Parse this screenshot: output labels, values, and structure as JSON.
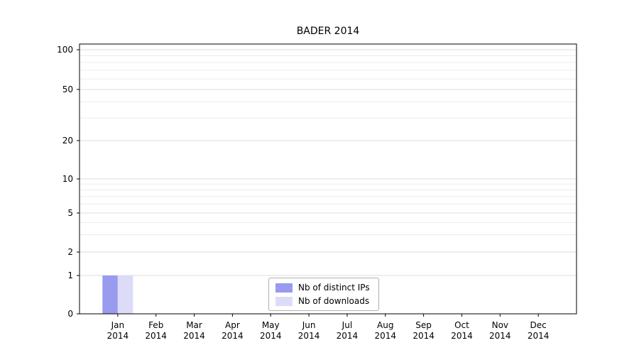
{
  "chart_data": {
    "type": "bar",
    "title": "BADER 2014",
    "categories": [
      {
        "month": "Jan",
        "year": "2014"
      },
      {
        "month": "Feb",
        "year": "2014"
      },
      {
        "month": "Mar",
        "year": "2014"
      },
      {
        "month": "Apr",
        "year": "2014"
      },
      {
        "month": "May",
        "year": "2014"
      },
      {
        "month": "Jun",
        "year": "2014"
      },
      {
        "month": "Jul",
        "year": "2014"
      },
      {
        "month": "Aug",
        "year": "2014"
      },
      {
        "month": "Sep",
        "year": "2014"
      },
      {
        "month": "Oct",
        "year": "2014"
      },
      {
        "month": "Nov",
        "year": "2014"
      },
      {
        "month": "Dec",
        "year": "2014"
      }
    ],
    "series": [
      {
        "name": "Nb of distinct IPs",
        "color": "#999bef",
        "values": [
          1,
          0,
          0,
          0,
          0,
          0,
          0,
          0,
          0,
          0,
          0,
          0
        ]
      },
      {
        "name": "Nb of downloads",
        "color": "#dcdcf8",
        "values": [
          1,
          0,
          0,
          0,
          0,
          0,
          0,
          0,
          0,
          0,
          0,
          0
        ]
      }
    ],
    "y_ticks": [
      0,
      1,
      2,
      5,
      10,
      20,
      50,
      100
    ],
    "y_minor_gridlines": [
      3,
      4,
      6,
      7,
      8,
      9,
      30,
      40,
      60,
      70,
      80,
      90
    ],
    "ylim": [
      0,
      100
    ],
    "y_scale": "log (symlog, 0 shown at baseline)",
    "grid": "horizontal major+minor, light gray",
    "legend_position": "lower center inside plot",
    "colors": {
      "axis_frame": "#000000",
      "major_gridline": "#dedede",
      "minor_gridline": "#ececec",
      "text": "#000000"
    }
  }
}
